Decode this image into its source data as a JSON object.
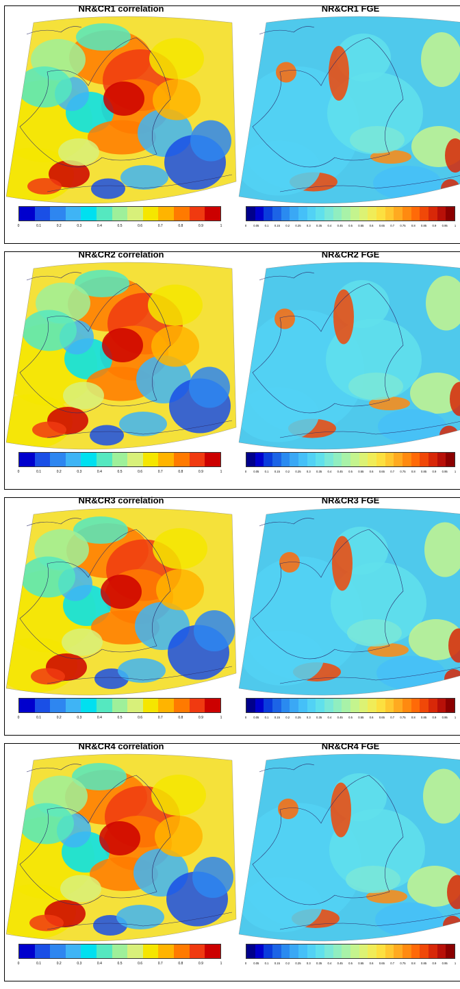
{
  "panels": [
    {
      "id": "cr1",
      "left_title": "NR&CR1 correlation",
      "right_title": "NR&CR1 FGE"
    },
    {
      "id": "cr2",
      "left_title": "NR&CR2 correlation",
      "right_title": "NR&CR2 FGE"
    },
    {
      "id": "cr3",
      "left_title": "NR&CR3 correlation",
      "right_title": "NR&CR3 FGE"
    },
    {
      "id": "cr4",
      "left_title": "NR&CR4 correlation",
      "right_title": "NR&CR4 FGE"
    }
  ],
  "correlation_colorbar": {
    "colors": [
      "#0000cd",
      "#1a4fe6",
      "#2e86f0",
      "#3fb4f5",
      "#00e0f0",
      "#55e8c0",
      "#9ef09a",
      "#d8f07a",
      "#f5e600",
      "#ffb400",
      "#ff7a00",
      "#f03a10",
      "#cc0000"
    ],
    "tick_labels": [
      "0",
      "0.1",
      "0.2",
      "0.3",
      "0.4",
      "0.5",
      "0.6",
      "0.7",
      "0.8",
      "0.9",
      "1"
    ]
  },
  "fge_colorbar": {
    "colors": [
      "#00008b",
      "#0000cd",
      "#0a3cdc",
      "#1c64e6",
      "#2a8af0",
      "#3aa8f5",
      "#45c0f8",
      "#52d2f5",
      "#60e0ec",
      "#7ae8d8",
      "#90eec0",
      "#a8f2a8",
      "#c4f48e",
      "#dcf274",
      "#f0ec58",
      "#fce040",
      "#ffc830",
      "#ffaa20",
      "#ff8a10",
      "#ff6a08",
      "#f04808",
      "#d82808",
      "#b81008",
      "#8b0000"
    ],
    "tick_labels": [
      "0",
      "0.05",
      "0.1",
      "0.15",
      "0.2",
      "0.25",
      "0.3",
      "0.35",
      "0.4",
      "0.45",
      "0.5",
      "0.55",
      "0.6",
      "0.65",
      "0.7",
      "0.75",
      "0.8",
      "0.85",
      "0.9",
      "0.95",
      "1"
    ]
  },
  "colors": {
    "ocean_correlation": "#f5e13a",
    "ocean_fge": "#4fc9ec",
    "border_lines": "#2a2a6a"
  }
}
